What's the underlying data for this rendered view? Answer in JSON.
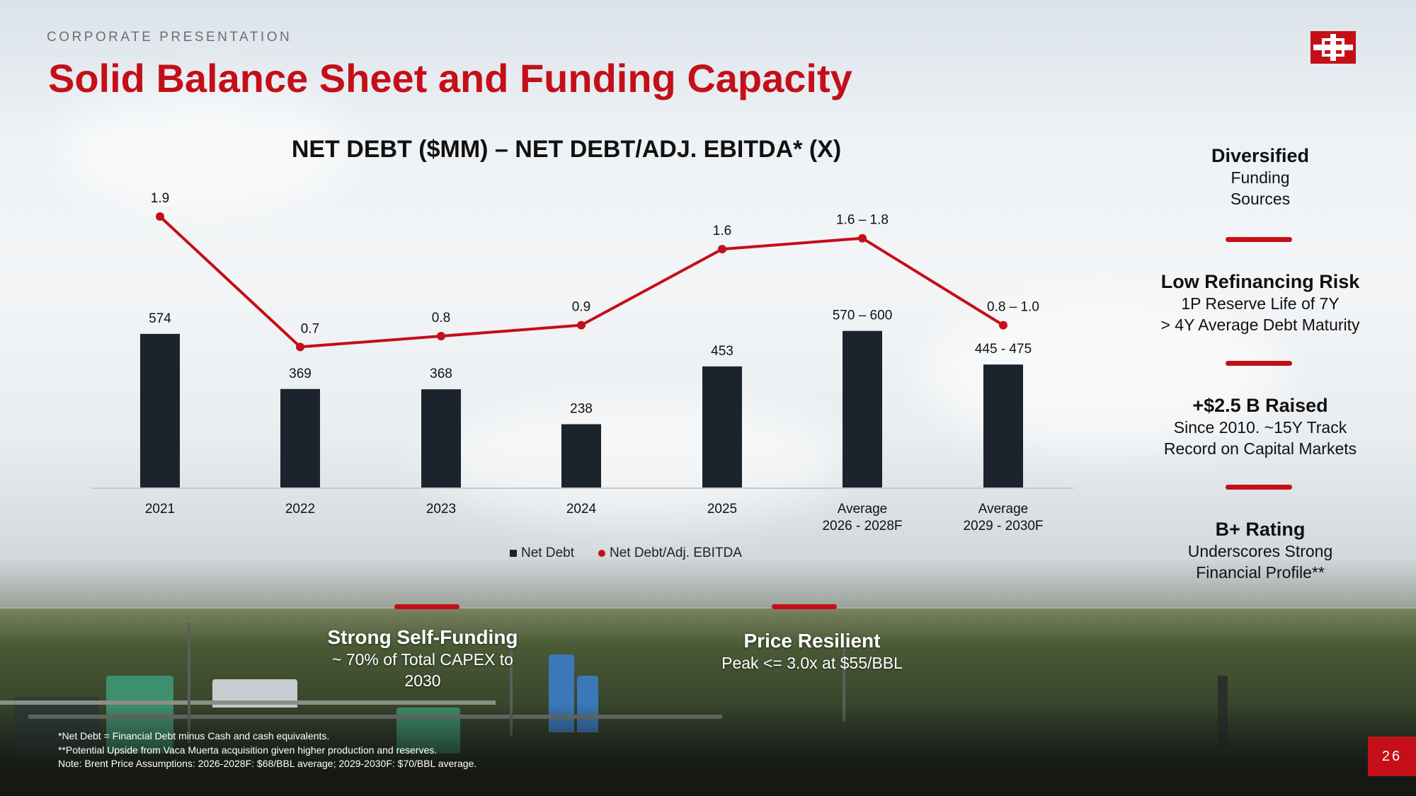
{
  "header": {
    "kicker": "CORPORATE PRESENTATION",
    "title": "Solid Balance Sheet and Funding Capacity"
  },
  "colors": {
    "accent": "#c40f18",
    "bar": "#1b232d"
  },
  "chart_data": {
    "type": "bar+line",
    "title": "NET DEBT ($MM) – NET DEBT/ADJ. EBITDA* (X)",
    "categories": [
      "2021",
      "2022",
      "2023",
      "2024",
      "2025",
      "Average 2026 - 2028F",
      "Average 2029 - 2030F"
    ],
    "category_lines": [
      [
        "2021"
      ],
      [
        "2022"
      ],
      [
        "2023"
      ],
      [
        "2024"
      ],
      [
        "2025"
      ],
      [
        "Average",
        "2026 - 2028F"
      ],
      [
        "Average",
        "2029 - 2030F"
      ]
    ],
    "series": [
      {
        "name": "Net Debt",
        "kind": "bar",
        "axis": "left",
        "values": [
          574,
          369,
          368,
          238,
          453,
          585,
          460
        ],
        "labels": [
          "574",
          "369",
          "368",
          "238",
          "453",
          "570 – 600",
          "445 - 475"
        ]
      },
      {
        "name": "Net Debt/Adj. EBITDA",
        "kind": "line",
        "axis": "right",
        "values": [
          1.9,
          0.7,
          0.8,
          0.9,
          1.6,
          1.7,
          0.9
        ],
        "labels": [
          "1.9",
          "0.7",
          "0.8",
          "0.9",
          "1.6",
          "1.6 – 1.8",
          "0.8 – 1.0"
        ]
      }
    ],
    "ylim_left": [
      0,
      600
    ],
    "ylim_right": [
      0,
      1.9
    ],
    "legend": [
      "Net Debt",
      "Net Debt/Adj. EBITDA"
    ],
    "legend_position": "bottom-center"
  },
  "sidebar": [
    {
      "heading": "Diversified",
      "lines": [
        "Funding",
        "Sources"
      ]
    },
    {
      "heading": "Low Refinancing Risk",
      "lines": [
        "1P Reserve Life of 7Y",
        "> 4Y Average Debt Maturity"
      ]
    },
    {
      "heading": "+$2.5 B Raised",
      "lines": [
        "Since 2010. ~15Y Track",
        "Record on Capital Markets"
      ]
    },
    {
      "heading": "B+ Rating",
      "lines": [
        "Underscores Strong",
        "Financial Profile**"
      ]
    }
  ],
  "highlights": [
    {
      "heading": "Strong Self-Funding",
      "lines": [
        "~ 70% of Total CAPEX to",
        "2030"
      ]
    },
    {
      "heading": "Price Resilient",
      "lines": [
        "Peak <= 3.0x at $55/BBL"
      ]
    }
  ],
  "footnotes": [
    "*Net Debt = Financial Debt minus Cash and cash equivalents.",
    "**Potential Upside from Vaca Muerta acquisition given higher production and reserves.",
    "Note: Brent Price Assumptions: 2026-2028F: $68/BBL average; 2029-2030F: $70/BBL average."
  ],
  "page_number": "26"
}
